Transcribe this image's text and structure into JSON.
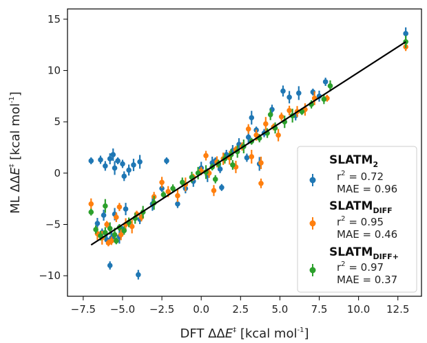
{
  "chart_data": {
    "type": "scatter",
    "xlabel": "DFT ΔΔE‡ [kcal mol⁻¹]",
    "xlabel_parts": {
      "pre": "DFT ΔΔ",
      "var": "E",
      "mark": "‡",
      "unit": " [kcal mol",
      "exp": "-1",
      "close": "]"
    },
    "ylabel": "ML ΔΔE‡ [kcal mol⁻¹]",
    "ylabel_parts": {
      "pre": "ML ΔΔ",
      "var": "E",
      "mark": "‡",
      "unit": " [kcal mol",
      "exp": "-1",
      "close": "]"
    },
    "xlim": [
      -8.5,
      14.0
    ],
    "ylim": [
      -12.0,
      16.0
    ],
    "x_ticks": [
      -7.5,
      -5.0,
      -2.5,
      0.0,
      2.5,
      5.0,
      7.5,
      10.0,
      12.5
    ],
    "x_tick_labels": [
      "−7.5",
      "−5.0",
      "−2.5",
      "0.0",
      "2.5",
      "5.0",
      "7.5",
      "10.0",
      "12.5"
    ],
    "y_ticks": [
      -10,
      -5,
      0,
      5,
      10,
      15
    ],
    "y_tick_labels": [
      "−10",
      "−5",
      "0",
      "5",
      "10",
      "15"
    ],
    "grid": false,
    "legend_position": "lower-right",
    "reference_line": {
      "x": [
        -7.0,
        13.0
      ],
      "y": [
        -7.0,
        12.8
      ],
      "color": "#000000"
    },
    "series": [
      {
        "name": "SLATM",
        "name_sub": "2",
        "color": "#1f77b4",
        "r2_label": "r",
        "r2_sup": "2",
        "r2_value": " = 0.72",
        "mae": "MAE = 0.96",
        "points": [
          [
            -7.0,
            1.2
          ],
          [
            -6.4,
            1.3
          ],
          [
            -6.1,
            0.7
          ],
          [
            -5.8,
            1.4
          ],
          [
            -5.6,
            1.8
          ],
          [
            -5.5,
            0.5
          ],
          [
            -5.3,
            1.2
          ],
          [
            -5.0,
            0.9
          ],
          [
            -4.9,
            -0.3
          ],
          [
            -4.6,
            0.3
          ],
          [
            -4.3,
            0.8
          ],
          [
            -3.9,
            1.1
          ],
          [
            -2.2,
            1.2
          ],
          [
            -6.3,
            -5.8
          ],
          [
            -6.0,
            -6.5
          ],
          [
            -5.7,
            -6.3
          ],
          [
            -5.5,
            -4.0
          ],
          [
            -5.2,
            -6.2
          ],
          [
            -5.0,
            -5.5
          ],
          [
            -5.8,
            -9.0
          ],
          [
            -4.0,
            -9.9
          ],
          [
            -6.2,
            -4.1
          ],
          [
            -4.8,
            -3.5
          ],
          [
            -3.1,
            -3.0
          ],
          [
            -2.5,
            -1.5
          ],
          [
            -1.5,
            -3.0
          ],
          [
            -1.0,
            -1.5
          ],
          [
            -0.5,
            -0.8
          ],
          [
            0.0,
            0.5
          ],
          [
            0.4,
            -0.2
          ],
          [
            0.9,
            1.2
          ],
          [
            1.2,
            0.4
          ],
          [
            1.6,
            1.8
          ],
          [
            2.0,
            2.2
          ],
          [
            2.4,
            2.8
          ],
          [
            3.0,
            3.5
          ],
          [
            3.5,
            4.2
          ],
          [
            4.0,
            3.9
          ],
          [
            4.5,
            6.2
          ],
          [
            5.2,
            8.0
          ],
          [
            5.6,
            7.4
          ],
          [
            6.2,
            7.8
          ],
          [
            7.1,
            7.9
          ],
          [
            7.9,
            8.9
          ],
          [
            6.0,
            5.6
          ],
          [
            7.5,
            7.5
          ],
          [
            13.0,
            13.6
          ],
          [
            3.7,
            0.9
          ],
          [
            1.3,
            -1.4
          ],
          [
            2.9,
            1.5
          ],
          [
            -3.9,
            -4.5
          ],
          [
            -6.6,
            -4.9
          ],
          [
            0.7,
            1.0
          ],
          [
            3.2,
            5.4
          ]
        ]
      },
      {
        "name": "SLATM",
        "name_sub": "DIFF",
        "color": "#ff7f0e",
        "r2_label": "r",
        "r2_sup": "2",
        "r2_value": " = 0.95",
        "mae": "MAE = 0.46",
        "points": [
          [
            -7.0,
            -3.0
          ],
          [
            -6.6,
            -5.9
          ],
          [
            -6.3,
            -6.3
          ],
          [
            -6.0,
            -5.0
          ],
          [
            -5.7,
            -6.6
          ],
          [
            -5.4,
            -4.3
          ],
          [
            -5.1,
            -6.0
          ],
          [
            -4.8,
            -5.0
          ],
          [
            -4.4,
            -5.2
          ],
          [
            -4.1,
            -4.0
          ],
          [
            -3.8,
            -4.3
          ],
          [
            -3.0,
            -2.3
          ],
          [
            -2.1,
            -1.8
          ],
          [
            -1.5,
            -2.2
          ],
          [
            -1.0,
            -1.1
          ],
          [
            -0.5,
            -0.4
          ],
          [
            0.0,
            0.2
          ],
          [
            0.5,
            0.0
          ],
          [
            1.0,
            1.1
          ],
          [
            1.4,
            1.4
          ],
          [
            1.8,
            1.5
          ],
          [
            2.2,
            2.3
          ],
          [
            2.6,
            2.6
          ],
          [
            3.0,
            4.3
          ],
          [
            3.5,
            3.7
          ],
          [
            3.8,
            1.0
          ],
          [
            4.1,
            4.8
          ],
          [
            4.6,
            4.5
          ],
          [
            5.1,
            5.5
          ],
          [
            5.6,
            6.1
          ],
          [
            6.1,
            6.0
          ],
          [
            6.6,
            6.2
          ],
          [
            7.2,
            7.3
          ],
          [
            8.0,
            7.3
          ],
          [
            13.0,
            12.3
          ],
          [
            3.8,
            -1.0
          ],
          [
            0.8,
            -1.7
          ],
          [
            2.2,
            0.6
          ],
          [
            3.2,
            1.6
          ],
          [
            -5.9,
            -6.8
          ],
          [
            -5.2,
            -3.3
          ],
          [
            0.3,
            1.7
          ],
          [
            -2.5,
            -0.9
          ],
          [
            4.9,
            3.7
          ]
        ]
      },
      {
        "name": "SLATM",
        "name_sub": "DIFF+",
        "color": "#2ca02c",
        "r2_label": "r",
        "r2_sup": "2",
        "r2_value": " = 0.97",
        "mae": "MAE = 0.37",
        "points": [
          [
            -7.0,
            -3.8
          ],
          [
            -6.7,
            -5.5
          ],
          [
            -6.4,
            -6.1
          ],
          [
            -6.1,
            -5.8
          ],
          [
            -5.8,
            -5.4
          ],
          [
            -5.5,
            -6.0
          ],
          [
            -5.2,
            -5.3
          ],
          [
            -4.9,
            -5.6
          ],
          [
            -4.6,
            -4.8
          ],
          [
            -4.2,
            -4.4
          ],
          [
            -3.7,
            -3.8
          ],
          [
            -3.0,
            -2.9
          ],
          [
            -2.4,
            -2.1
          ],
          [
            -1.8,
            -1.5
          ],
          [
            -1.2,
            -0.9
          ],
          [
            -0.6,
            -0.4
          ],
          [
            -0.2,
            0.0
          ],
          [
            0.3,
            0.1
          ],
          [
            0.7,
            0.6
          ],
          [
            1.1,
            0.9
          ],
          [
            1.5,
            1.4
          ],
          [
            1.9,
            1.8
          ],
          [
            2.3,
            2.1
          ],
          [
            2.7,
            2.6
          ],
          [
            3.2,
            3.1
          ],
          [
            3.7,
            3.4
          ],
          [
            4.2,
            3.9
          ],
          [
            4.7,
            4.4
          ],
          [
            5.3,
            5.0
          ],
          [
            5.8,
            5.6
          ],
          [
            6.4,
            6.0
          ],
          [
            7.0,
            6.7
          ],
          [
            7.8,
            7.2
          ],
          [
            8.2,
            8.5
          ],
          [
            13.0,
            12.8
          ],
          [
            -6.1,
            -3.2
          ],
          [
            -5.4,
            -6.6
          ],
          [
            0.9,
            -0.6
          ],
          [
            2.0,
            0.8
          ],
          [
            4.4,
            5.7
          ]
        ]
      }
    ]
  }
}
